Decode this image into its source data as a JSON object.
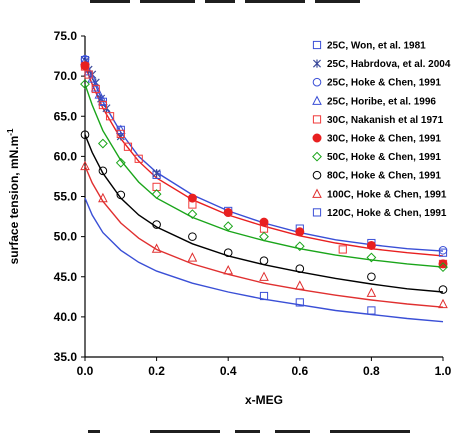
{
  "chart_data": {
    "type": "scatter",
    "title": "",
    "xlabel": "x-MEG",
    "ylabel": "surface tension, mN.m",
    "ylabel_superscript": "-1",
    "xlim": [
      0,
      1
    ],
    "ylim": [
      35,
      75
    ],
    "x_ticks": [
      "0.0",
      "0.2",
      "0.4",
      "0.6",
      "0.8",
      "1.0"
    ],
    "y_ticks": [
      "35.0",
      "40.0",
      "45.0",
      "50.0",
      "55.0",
      "60.0",
      "65.0",
      "70.0",
      "75.0"
    ],
    "legend_position": "top-right",
    "series": [
      {
        "name": "25C, Won, et al. 1981",
        "marker": "square-open",
        "color": "#3a4fd6",
        "points": [
          [
            0.0,
            72.0
          ],
          [
            0.05,
            66.8
          ],
          [
            0.1,
            63.3
          ],
          [
            0.2,
            57.7
          ],
          [
            0.4,
            53.2
          ],
          [
            0.6,
            51.0
          ],
          [
            0.8,
            49.2
          ],
          [
            1.0,
            48.0
          ]
        ]
      },
      {
        "name": "25C, Habrdova, et al. 2004",
        "marker": "asterisk",
        "color": "#3b4a9a",
        "points": [
          [
            0.002,
            71.9
          ],
          [
            0.01,
            70.8
          ],
          [
            0.02,
            70.2
          ],
          [
            0.03,
            69.2
          ],
          [
            0.045,
            67.2
          ],
          [
            0.06,
            66.0
          ],
          [
            0.1,
            62.5
          ],
          [
            0.2,
            57.9
          ]
        ]
      },
      {
        "name": "25C, Hoke & Chen, 1991",
        "marker": "circle-open",
        "color": "#3a4fd6",
        "points": [
          [
            0.0,
            72.1
          ],
          [
            1.0,
            48.3
          ]
        ]
      },
      {
        "name": "25C, Horibe, et al. 1996",
        "marker": "triangle-open",
        "color": "#3a4fd6",
        "points": [
          [
            0.0,
            71.9
          ],
          [
            0.01,
            70.6
          ],
          [
            0.02,
            69.7
          ],
          [
            0.03,
            68.6
          ],
          [
            0.04,
            67.7
          ],
          [
            0.05,
            66.9
          ],
          [
            0.1,
            63.3
          ]
        ]
      },
      {
        "name": "30C, Nakanish et al 1971",
        "marker": "square-open",
        "color": "#f03a3a",
        "points": [
          [
            0.0,
            71.2
          ],
          [
            0.01,
            70.2
          ],
          [
            0.03,
            68.4
          ],
          [
            0.05,
            66.4
          ],
          [
            0.07,
            65.0
          ],
          [
            0.1,
            62.8
          ],
          [
            0.12,
            61.2
          ],
          [
            0.15,
            59.7
          ],
          [
            0.2,
            56.2
          ],
          [
            0.3,
            54.0
          ],
          [
            0.5,
            51.0
          ],
          [
            0.72,
            48.4
          ],
          [
            1.0,
            46.6
          ]
        ]
      },
      {
        "name": "30C, Hoke & Chen, 1991",
        "marker": "circle-filled",
        "color": "#e82020",
        "points": [
          [
            0.0,
            71.3
          ],
          [
            0.3,
            54.8
          ],
          [
            0.4,
            53.0
          ],
          [
            0.5,
            51.8
          ],
          [
            0.6,
            50.6
          ],
          [
            0.8,
            48.9
          ],
          [
            1.0,
            46.6
          ]
        ]
      },
      {
        "name": "50C, Hoke & Chen, 1991",
        "marker": "diamond-open",
        "color": "#1aa51a",
        "points": [
          [
            0.0,
            69.0
          ],
          [
            0.05,
            61.6
          ],
          [
            0.1,
            59.2
          ],
          [
            0.2,
            55.3
          ],
          [
            0.3,
            52.8
          ],
          [
            0.4,
            51.3
          ],
          [
            0.5,
            50.0
          ],
          [
            0.6,
            48.8
          ],
          [
            0.8,
            47.4
          ],
          [
            1.0,
            46.2
          ]
        ]
      },
      {
        "name": "80C, Hoke & Chen, 1991",
        "marker": "circle-open",
        "color": "#000000",
        "points": [
          [
            0.0,
            62.7
          ],
          [
            0.05,
            58.2
          ],
          [
            0.1,
            55.2
          ],
          [
            0.2,
            51.5
          ],
          [
            0.3,
            50.0
          ],
          [
            0.4,
            48.0
          ],
          [
            0.5,
            47.0
          ],
          [
            0.6,
            46.0
          ],
          [
            0.8,
            45.0
          ],
          [
            1.0,
            43.4
          ]
        ]
      },
      {
        "name": "100C, Hoke & Chen, 1991",
        "marker": "triangle-open",
        "color": "#e03030",
        "points": [
          [
            0.0,
            58.8
          ],
          [
            0.05,
            54.8
          ],
          [
            0.2,
            48.5
          ],
          [
            0.3,
            47.4
          ],
          [
            0.4,
            45.8
          ],
          [
            0.5,
            45.0
          ],
          [
            0.6,
            43.9
          ],
          [
            0.8,
            43.0
          ],
          [
            1.0,
            41.6
          ]
        ]
      },
      {
        "name": "120C, Hoke & Chen, 1991",
        "marker": "square-open",
        "color": "#3a4fd6",
        "points": [
          [
            0.5,
            42.6
          ],
          [
            0.6,
            41.8
          ],
          [
            0.8,
            40.8
          ]
        ]
      }
    ],
    "fit_curves": [
      {
        "color": "#3a4fd6",
        "points": [
          [
            0.0,
            72.1
          ],
          [
            0.02,
            69.8
          ],
          [
            0.05,
            66.8
          ],
          [
            0.1,
            63.0
          ],
          [
            0.15,
            60.0
          ],
          [
            0.2,
            58.0
          ],
          [
            0.3,
            55.2
          ],
          [
            0.4,
            53.2
          ],
          [
            0.5,
            51.7
          ],
          [
            0.6,
            50.5
          ],
          [
            0.7,
            49.6
          ],
          [
            0.8,
            49.0
          ],
          [
            0.9,
            48.5
          ],
          [
            1.0,
            48.2
          ]
        ]
      },
      {
        "color": "#e82020",
        "points": [
          [
            0.0,
            71.3
          ],
          [
            0.02,
            69.0
          ],
          [
            0.05,
            66.0
          ],
          [
            0.1,
            62.2
          ],
          [
            0.15,
            59.4
          ],
          [
            0.2,
            57.3
          ],
          [
            0.3,
            54.6
          ],
          [
            0.4,
            52.7
          ],
          [
            0.5,
            51.3
          ],
          [
            0.6,
            50.1
          ],
          [
            0.7,
            49.2
          ],
          [
            0.8,
            48.5
          ],
          [
            0.9,
            48.0
          ],
          [
            1.0,
            47.6
          ]
        ]
      },
      {
        "color": "#1aa51a",
        "points": [
          [
            0.0,
            69.0
          ],
          [
            0.02,
            66.4
          ],
          [
            0.05,
            63.2
          ],
          [
            0.1,
            59.5
          ],
          [
            0.15,
            56.8
          ],
          [
            0.2,
            54.8
          ],
          [
            0.3,
            52.4
          ],
          [
            0.4,
            50.7
          ],
          [
            0.5,
            49.5
          ],
          [
            0.6,
            48.5
          ],
          [
            0.7,
            47.7
          ],
          [
            0.8,
            47.1
          ],
          [
            0.9,
            46.6
          ],
          [
            1.0,
            46.2
          ]
        ]
      },
      {
        "color": "#000000",
        "points": [
          [
            0.0,
            62.7
          ],
          [
            0.02,
            60.5
          ],
          [
            0.05,
            57.9
          ],
          [
            0.1,
            54.8
          ],
          [
            0.15,
            52.7
          ],
          [
            0.2,
            51.2
          ],
          [
            0.3,
            49.1
          ],
          [
            0.4,
            47.6
          ],
          [
            0.5,
            46.5
          ],
          [
            0.6,
            45.6
          ],
          [
            0.7,
            44.8
          ],
          [
            0.8,
            44.1
          ],
          [
            0.9,
            43.5
          ],
          [
            1.0,
            43.1
          ]
        ]
      },
      {
        "color": "#e03030",
        "points": [
          [
            0.0,
            58.8
          ],
          [
            0.02,
            56.7
          ],
          [
            0.05,
            54.4
          ],
          [
            0.1,
            51.7
          ],
          [
            0.15,
            49.8
          ],
          [
            0.2,
            48.4
          ],
          [
            0.3,
            46.6
          ],
          [
            0.4,
            45.3
          ],
          [
            0.5,
            44.2
          ],
          [
            0.6,
            43.4
          ],
          [
            0.7,
            42.7
          ],
          [
            0.8,
            42.1
          ],
          [
            0.9,
            41.6
          ],
          [
            1.0,
            41.2
          ]
        ]
      },
      {
        "color": "#3a4fd6",
        "points": [
          [
            0.0,
            54.8
          ],
          [
            0.02,
            52.7
          ],
          [
            0.05,
            50.5
          ],
          [
            0.1,
            48.3
          ],
          [
            0.15,
            46.8
          ],
          [
            0.2,
            45.7
          ],
          [
            0.3,
            44.2
          ],
          [
            0.4,
            43.1
          ],
          [
            0.5,
            42.2
          ],
          [
            0.6,
            41.5
          ],
          [
            0.7,
            40.8
          ],
          [
            0.8,
            40.3
          ],
          [
            0.9,
            39.8
          ],
          [
            1.0,
            39.4
          ]
        ]
      }
    ]
  }
}
